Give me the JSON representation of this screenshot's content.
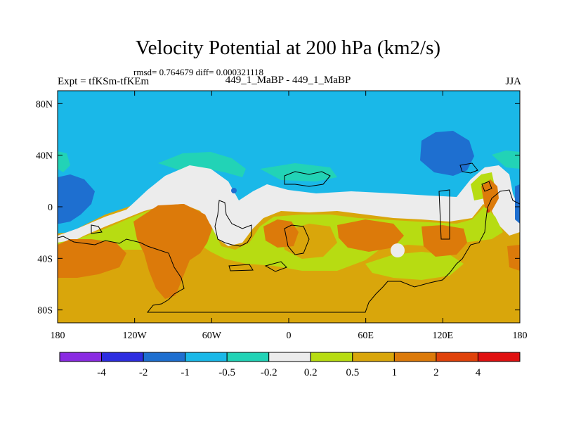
{
  "title": "Velocity Potential at 200 hPa (km2/s)",
  "stats": "rmsd= 0.764679 diff= 0.000321118",
  "experiment_label": "Expt = tfKSm-tfKEm",
  "case_label": "449_1_MaBP - 449_1_MaBP",
  "season": "JJA",
  "map": {
    "lon_ticks": [
      {
        "value": -180,
        "label": "180"
      },
      {
        "value": -120,
        "label": "120W"
      },
      {
        "value": -60,
        "label": "60W"
      },
      {
        "value": 0,
        "label": "0"
      },
      {
        "value": 60,
        "label": "60E"
      },
      {
        "value": 120,
        "label": "120E"
      },
      {
        "value": 180,
        "label": "180"
      }
    ],
    "lat_ticks": [
      {
        "value": 80,
        "label": "80N"
      },
      {
        "value": 40,
        "label": "40N"
      },
      {
        "value": 0,
        "label": "0"
      },
      {
        "value": -40,
        "label": "40S"
      },
      {
        "value": -80,
        "label": "80S"
      }
    ]
  },
  "colorbar": {
    "colors": [
      "#8a2be2",
      "#2d2de0",
      "#1e6fd0",
      "#1ab8e8",
      "#22d3b6",
      "#ececec",
      "#b7dc12",
      "#d9a60b",
      "#dc7a0a",
      "#e0420a",
      "#e01010"
    ],
    "labels": [
      "-4",
      "-2",
      "-1",
      "-0.5",
      "-0.2",
      "0.2",
      "0.5",
      "1",
      "2",
      "4"
    ]
  }
}
